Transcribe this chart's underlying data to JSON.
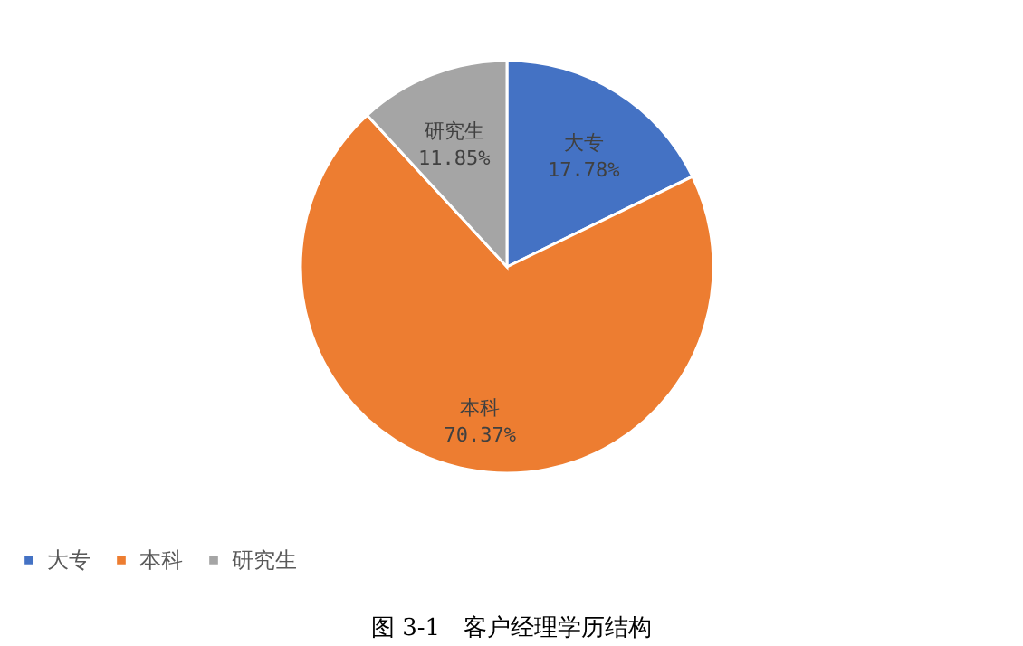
{
  "chart_data": {
    "type": "pie",
    "categories": [
      "大专",
      "本科",
      "研究生"
    ],
    "values": [
      17.78,
      70.37,
      11.85
    ],
    "value_labels": [
      "17.78%",
      "70.37%",
      "11.85%"
    ],
    "colors": [
      "#4472c4",
      "#ed7d31",
      "#a5a5a5"
    ],
    "legend": "bottom",
    "annotations": [
      "图 3-1　客户经理学历结构"
    ]
  }
}
